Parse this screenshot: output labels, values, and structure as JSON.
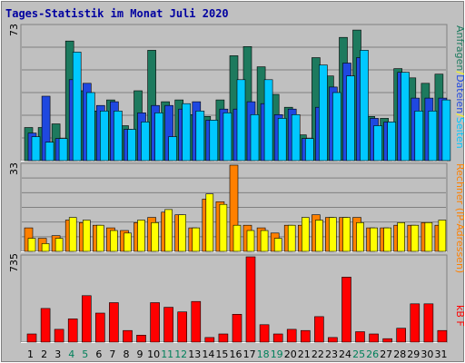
{
  "chart_data": {
    "type": "bar",
    "title": "Tages-Statistik im Monat Juli 2020",
    "categories": [
      "1",
      "2",
      "3",
      "4",
      "5",
      "6",
      "7",
      "8",
      "9",
      "10",
      "11",
      "12",
      "13",
      "14",
      "15",
      "16",
      "17",
      "18",
      "19",
      "20",
      "21",
      "22",
      "23",
      "24",
      "25",
      "26",
      "27",
      "28",
      "29",
      "30",
      "31"
    ],
    "weekend_days": [
      "4",
      "5",
      "11",
      "12",
      "18",
      "19",
      "25",
      "26"
    ],
    "colors": {
      "title": "#0000a0",
      "weekday_label": "#000000",
      "weekend_label": "#00805a",
      "background": "#c0c0c0",
      "grid": "#808080",
      "border": "#ffffff"
    },
    "panels": [
      {
        "id": "requests",
        "ymax_label": "73",
        "ymax": 73,
        "grid": true,
        "series": [
          {
            "name": "Anfragen",
            "color": "#1d7a5e",
            "values": [
              18,
              18,
              20,
              65,
              38,
              27,
              33,
              19,
              38,
              60,
              32,
              33,
              25,
              24,
              33,
              57,
              62,
              51,
              36,
              29,
              14,
              56,
              46,
              67,
              71,
              24,
              23,
              50,
              45,
              42,
              47
            ]
          },
          {
            "name": "Dateien",
            "color": "#1f48e0",
            "values": [
              15,
              35,
              12,
              44,
              42,
              30,
              32,
              17,
              26,
              30,
              30,
              28,
              32,
              22,
              28,
              28,
              32,
              31,
              25,
              28,
              12,
              29,
              40,
              53,
              56,
              23,
              21,
              48,
              34,
              34,
              34
            ]
          },
          {
            "name": "Seiten",
            "color": "#00c8ff",
            "values": [
              13,
              10,
              12,
              59,
              37,
              27,
              27,
              17,
              21,
              26,
              13,
              31,
              27,
              22,
              26,
              44,
              25,
              44,
              23,
              25,
              12,
              52,
              37,
              46,
              60,
              19,
              21,
              48,
              27,
              27,
              33
            ]
          }
        ]
      },
      {
        "id": "visits",
        "ymax_label": "33",
        "ymax": 33,
        "grid": true,
        "series": [
          {
            "name": "Rechner (IP-Adressen)",
            "color": "#ff8000",
            "values": [
              9,
              5,
              6,
              12,
              11,
              10,
              9,
              8,
              11,
              13,
              15,
              14,
              9,
              20,
              19,
              33,
              10,
              9,
              7,
              10,
              10,
              14,
              13,
              13,
              13,
              9,
              9,
              10,
              10,
              11,
              10
            ]
          },
          {
            "name": "Besuche",
            "color": "#ffff00",
            "values": [
              5,
              3,
              5,
              13,
              12,
              10,
              8,
              7,
              12,
              11,
              16,
              14,
              9,
              22,
              18,
              10,
              8,
              8,
              5,
              10,
              13,
              12,
              13,
              13,
              11,
              9,
              9,
              11,
              10,
              11,
              12
            ]
          }
        ]
      },
      {
        "id": "kbytes",
        "ymax_label": "735",
        "ymax": 735,
        "grid": false,
        "series": [
          {
            "name": "kB F",
            "color": "#ff0000",
            "values": [
              70,
              290,
              110,
              200,
              400,
              250,
              340,
              100,
              60,
              340,
              300,
              260,
              350,
              40,
              70,
              240,
              735,
              150,
              70,
              110,
              100,
              220,
              40,
              560,
              90,
              70,
              30,
              120,
              330,
              330,
              100
            ]
          }
        ]
      }
    ],
    "legend": {
      "right_top": [
        "Seiten",
        "Dateien",
        "Anfragen"
      ],
      "right_middle": [
        "Rechner (IP-Adressen)"
      ],
      "right_bottom": [
        "kB F"
      ]
    }
  }
}
